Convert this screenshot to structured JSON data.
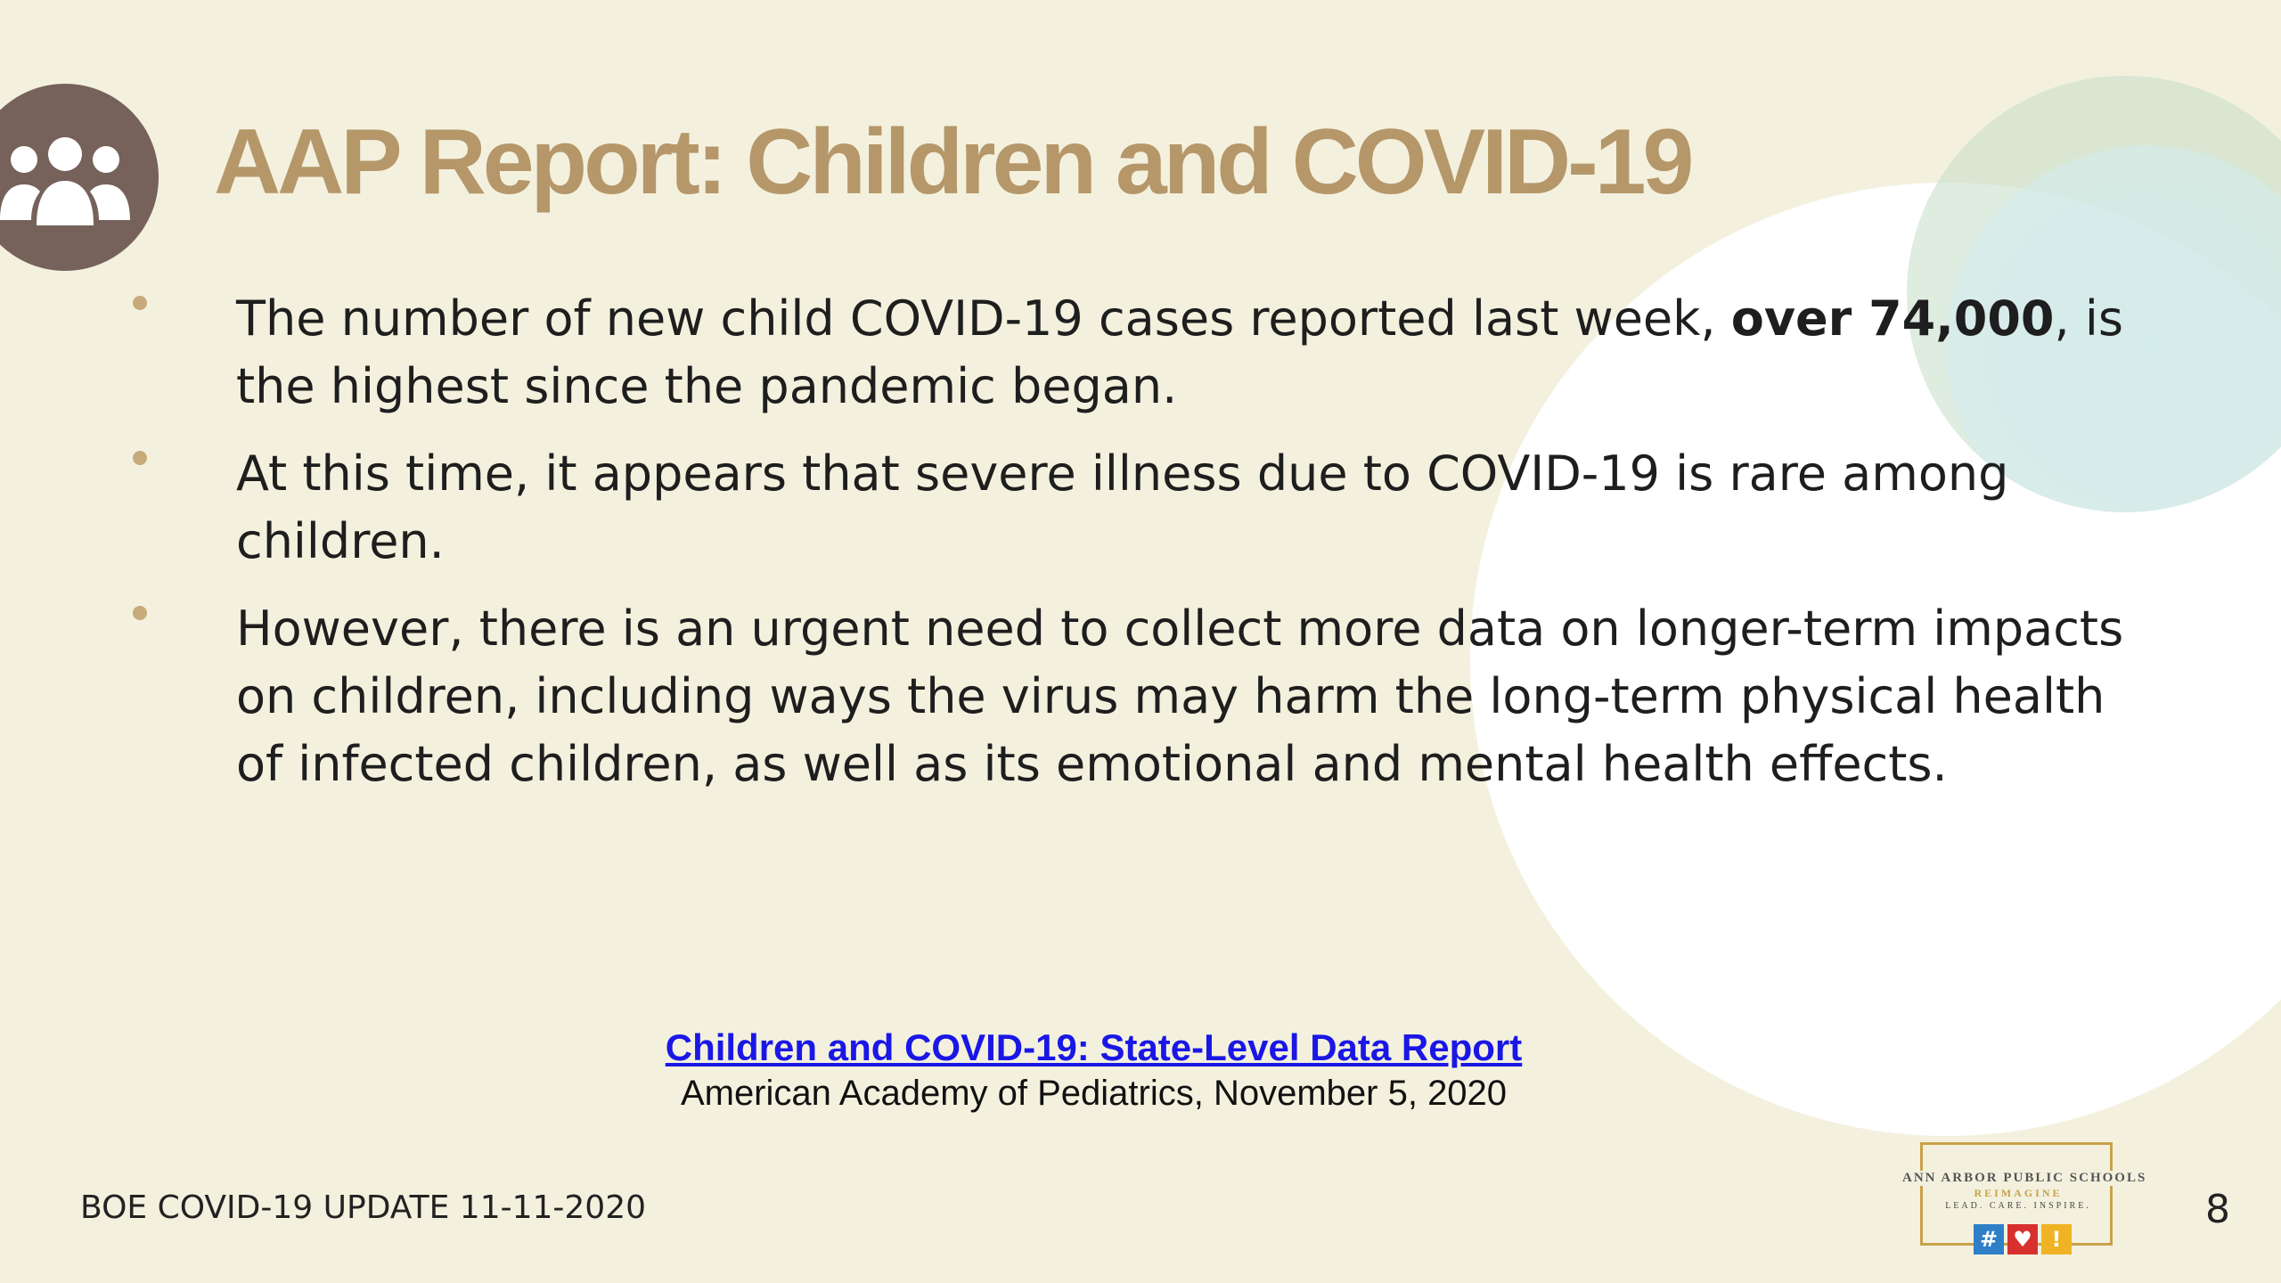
{
  "slide": {
    "title": "AAP Report: Children and COVID-19",
    "title_icon": "people-group-icon",
    "bullets": [
      {
        "before": "The number of new child COVID-19 cases reported last week, ",
        "bold": "over 74,000",
        "after": ", is the highest since the pandemic began."
      },
      {
        "text": "At this time, it appears that severe illness due to COVID-19 is rare among children."
      },
      {
        "text": "However, there is an urgent need to collect more data on longer-term impacts on children, including ways the virus may harm the long-term physical health of infected children, as well as its emotional and mental health effects."
      }
    ],
    "source": {
      "link_text": "Children and COVID-19: State-Level Data Report",
      "citation": "American Academy of Pediatrics, November 5, 2020"
    },
    "footer": {
      "left_text": "BOE COVID-19 UPDATE 11-11-2020",
      "page_number": "8"
    },
    "logo": {
      "line1": "ANN ARBOR PUBLIC SCHOOLS",
      "line2": "REIMAGINE",
      "line3": "LEAD. CARE. INSPIRE.",
      "badges": [
        "#",
        "♥",
        "!"
      ]
    },
    "colors": {
      "background": "#f3f1de",
      "title": "#b5976a",
      "icon_circle": "#76625a",
      "bullet_dot": "#c8a97a",
      "link": "#1a17e6",
      "logo_gold": "#c8a14a"
    }
  }
}
